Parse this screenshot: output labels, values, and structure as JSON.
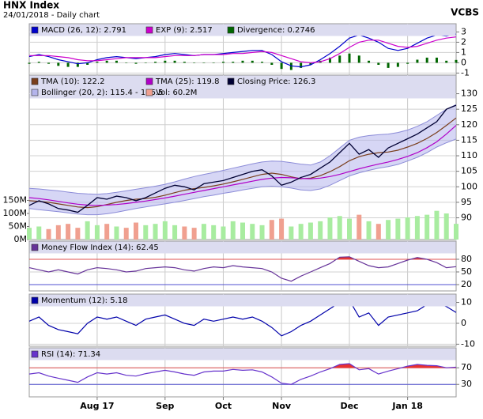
{
  "title": "HNX Index",
  "subtitle": "24/01/2018 - Daily chart",
  "source": "VCBS",
  "chart_data": [
    {
      "type": "macd",
      "ylim": [
        -1.2,
        3.8
      ],
      "yticks": [
        -1,
        0,
        1,
        2,
        3
      ],
      "grid": true,
      "series": [
        {
          "name": "MACD (26, 12): 2.791",
          "color": "#0000cc",
          "kind": "line",
          "values": [
            0.6,
            0.8,
            0.6,
            0.3,
            0.1,
            -0.1,
            0.0,
            0.3,
            0.5,
            0.6,
            0.5,
            0.4,
            0.5,
            0.6,
            0.8,
            0.9,
            0.8,
            0.7,
            0.8,
            0.8,
            0.9,
            1.0,
            1.1,
            1.2,
            1.2,
            0.8,
            0.1,
            -0.3,
            -0.4,
            -0.2,
            0.3,
            0.9,
            1.6,
            2.4,
            2.7,
            2.4,
            2.0,
            1.4,
            1.2,
            1.4,
            1.9,
            2.4,
            2.7,
            2.6,
            2.791
          ]
        },
        {
          "name": "EXP (9): 2.517",
          "color": "#cc00cc",
          "kind": "line",
          "values": [
            0.7,
            0.7,
            0.7,
            0.6,
            0.5,
            0.3,
            0.2,
            0.2,
            0.3,
            0.4,
            0.5,
            0.5,
            0.5,
            0.5,
            0.6,
            0.7,
            0.7,
            0.7,
            0.8,
            0.8,
            0.8,
            0.9,
            0.9,
            1.0,
            1.1,
            1.0,
            0.7,
            0.4,
            0.1,
            0.0,
            0.1,
            0.4,
            0.9,
            1.5,
            2.0,
            2.2,
            2.2,
            1.9,
            1.6,
            1.5,
            1.6,
            1.9,
            2.2,
            2.4,
            2.517
          ]
        },
        {
          "name": "Divergence: 0.2746",
          "color": "#006600",
          "kind": "bar",
          "values": [
            -0.1,
            0.1,
            -0.1,
            -0.3,
            -0.4,
            -0.4,
            -0.2,
            0.1,
            0.2,
            0.2,
            0.0,
            -0.1,
            0.0,
            0.1,
            0.2,
            0.2,
            0.1,
            0.0,
            0.0,
            0.0,
            0.1,
            0.1,
            0.2,
            0.2,
            0.1,
            -0.2,
            -0.6,
            -0.7,
            -0.5,
            -0.2,
            0.2,
            0.5,
            0.7,
            0.9,
            0.7,
            0.2,
            -0.2,
            -0.5,
            -0.4,
            -0.1,
            0.3,
            0.5,
            0.5,
            0.2,
            0.2746
          ]
        }
      ]
    },
    {
      "type": "stock",
      "ylim": [
        83,
        136
      ],
      "yticks": [
        90,
        95,
        100,
        105,
        110,
        115,
        120,
        125,
        130
      ],
      "grid": true,
      "y2lim": [
        0,
        630
      ],
      "y2ticks": [
        {
          "value": 0,
          "label": "0M"
        },
        {
          "value": 50,
          "label": "50M"
        },
        {
          "value": 100,
          "label": "100M"
        },
        {
          "value": 150,
          "label": "150M"
        }
      ],
      "series": [
        {
          "name": "TMA (10): 122.2",
          "color": "#7a3e1c",
          "kind": "line",
          "values": [
            95.5,
            95.3,
            95.0,
            94.5,
            94.0,
            93.5,
            93.3,
            93.6,
            94.3,
            95.0,
            95.6,
            96.0,
            96.2,
            96.6,
            97.3,
            98.1,
            98.9,
            99.4,
            99.8,
            100.3,
            100.9,
            101.6,
            102.4,
            103.2,
            104.0,
            104.4,
            104.0,
            103.2,
            102.6,
            102.8,
            103.6,
            104.9,
            106.5,
            108.4,
            109.7,
            110.5,
            111.0,
            111.2,
            111.8,
            112.8,
            114.0,
            115.6,
            117.5,
            119.8,
            122.2
          ]
        },
        {
          "name": "TMA (25): 119.8",
          "color": "#b000c8",
          "kind": "line",
          "values": [
            96.5,
            96.2,
            95.8,
            95.3,
            94.8,
            94.4,
            94.1,
            94.0,
            94.1,
            94.3,
            94.6,
            95.0,
            95.4,
            95.9,
            96.4,
            97.0,
            97.6,
            98.2,
            98.8,
            99.4,
            100.0,
            100.6,
            101.2,
            101.8,
            102.4,
            102.8,
            103.0,
            102.9,
            102.7,
            102.6,
            102.8,
            103.3,
            104.0,
            104.9,
            105.8,
            106.6,
            107.3,
            108.0,
            108.8,
            109.8,
            111.0,
            112.6,
            114.5,
            117.0,
            119.8
          ]
        },
        {
          "name": "Closing Price: 126.3",
          "color": "#000033",
          "kind": "close",
          "values": [
            94.0,
            95.5,
            94.5,
            93.0,
            92.5,
            91.8,
            94.0,
            96.5,
            96.0,
            97.0,
            96.5,
            95.5,
            96.5,
            98.0,
            99.5,
            100.5,
            100.0,
            99.0,
            101.0,
            101.5,
            102.0,
            103.0,
            104.0,
            105.0,
            105.5,
            103.5,
            100.5,
            101.5,
            103.0,
            104.0,
            106.0,
            108.0,
            111.0,
            114.0,
            110.5,
            112.0,
            109.5,
            112.5,
            114.0,
            115.5,
            117.0,
            119.0,
            121.0,
            125.0,
            126.3
          ]
        },
        {
          "name": "Bollinger (20, 2): 115.4 - 126.5",
          "color": "#b4b4ec",
          "kind": "band",
          "lower": [
            93.0,
            92.6,
            92.3,
            92.0,
            91.6,
            91.2,
            91.0,
            91.0,
            91.3,
            91.8,
            92.4,
            93.0,
            93.5,
            94.0,
            94.5,
            95.0,
            95.6,
            96.2,
            96.8,
            97.3,
            97.9,
            98.4,
            99.0,
            99.5,
            100.0,
            100.2,
            100.0,
            99.6,
            99.0,
            98.8,
            99.3,
            100.5,
            102.0,
            103.5,
            104.5,
            105.3,
            106.0,
            106.5,
            107.2,
            108.3,
            109.5,
            111.0,
            112.8,
            114.2,
            115.4
          ],
          "upper": [
            99.5,
            99.3,
            99.0,
            98.7,
            98.3,
            97.9,
            97.7,
            97.6,
            97.8,
            98.2,
            98.7,
            99.2,
            99.7,
            100.2,
            100.8,
            101.6,
            102.5,
            103.3,
            104.0,
            104.6,
            105.3,
            106.0,
            106.7,
            107.4,
            108.0,
            108.3,
            108.2,
            107.8,
            107.3,
            107.0,
            108.0,
            110.0,
            112.5,
            115.0,
            116.0,
            116.5,
            116.8,
            117.0,
            117.5,
            118.3,
            119.5,
            121.0,
            123.0,
            125.0,
            126.5
          ]
        },
        {
          "name": "Vol: 60.2M",
          "color": "#f0a090",
          "up_color": "#a8eca0",
          "kind": "volume",
          "axis": "y2",
          "values": [
            45,
            50,
            40,
            55,
            60,
            45,
            70,
            55,
            60,
            50,
            45,
            65,
            55,
            60,
            70,
            55,
            50,
            45,
            60,
            55,
            50,
            70,
            65,
            60,
            55,
            75,
            80,
            50,
            60,
            65,
            70,
            85,
            90,
            80,
            95,
            70,
            60,
            75,
            80,
            85,
            90,
            95,
            110,
            100,
            60.2
          ]
        }
      ]
    },
    {
      "type": "oscillator",
      "ylim": [
        5,
        123
      ],
      "yticks": [
        20,
        50,
        80
      ],
      "band": [
        20,
        80
      ],
      "grid": true,
      "series": [
        {
          "name": "Money Flow Index (14): 62.45",
          "color": "#663399",
          "kind": "line",
          "values": [
            60,
            55,
            50,
            55,
            50,
            45,
            55,
            60,
            58,
            55,
            50,
            52,
            58,
            60,
            62,
            60,
            55,
            52,
            58,
            62,
            60,
            65,
            62,
            60,
            58,
            50,
            35,
            28,
            40,
            50,
            60,
            70,
            85,
            86,
            75,
            65,
            60,
            62,
            70,
            78,
            84,
            80,
            72,
            60,
            62.45
          ]
        }
      ]
    },
    {
      "type": "oscillator",
      "ylim": [
        -11,
        14
      ],
      "yticks": [
        -10,
        0,
        10
      ],
      "grid": true,
      "series": [
        {
          "name": "Momentum (12): 5.18",
          "color": "#0000aa",
          "kind": "line",
          "values": [
            1,
            3,
            -1,
            -3,
            -4,
            -5,
            0,
            3,
            2,
            3,
            1,
            -1,
            2,
            3,
            4,
            2,
            0,
            -1,
            2,
            1,
            2,
            3,
            2,
            3,
            1,
            -2,
            -6,
            -4,
            -1,
            1,
            4,
            7,
            10,
            11,
            3,
            5,
            -1,
            3,
            4,
            5,
            6,
            9,
            10,
            8,
            5.18
          ]
        }
      ]
    },
    {
      "type": "oscillator",
      "ylim": [
        0,
        118
      ],
      "yticks": [
        30,
        70
      ],
      "band": [
        30,
        70
      ],
      "grid": true,
      "categories": [
        null,
        null,
        null,
        null,
        null,
        null,
        null,
        "Aug 17",
        null,
        null,
        null,
        null,
        null,
        null,
        "Sep",
        null,
        null,
        null,
        null,
        null,
        "Oct",
        null,
        null,
        null,
        null,
        null,
        "Nov",
        null,
        null,
        null,
        null,
        null,
        null,
        "Dec",
        null,
        null,
        null,
        null,
        null,
        "Jan 18",
        null,
        null,
        null,
        null,
        null
      ],
      "series": [
        {
          "name": "RSI (14): 71.34",
          "color": "#6633cc",
          "kind": "line",
          "values": [
            55,
            58,
            50,
            45,
            40,
            35,
            48,
            58,
            55,
            58,
            52,
            50,
            56,
            60,
            64,
            60,
            55,
            52,
            60,
            62,
            62,
            66,
            64,
            65,
            60,
            48,
            33,
            30,
            42,
            50,
            60,
            68,
            78,
            80,
            65,
            68,
            55,
            62,
            68,
            74,
            78,
            76,
            75,
            70,
            71.34
          ]
        }
      ]
    }
  ]
}
